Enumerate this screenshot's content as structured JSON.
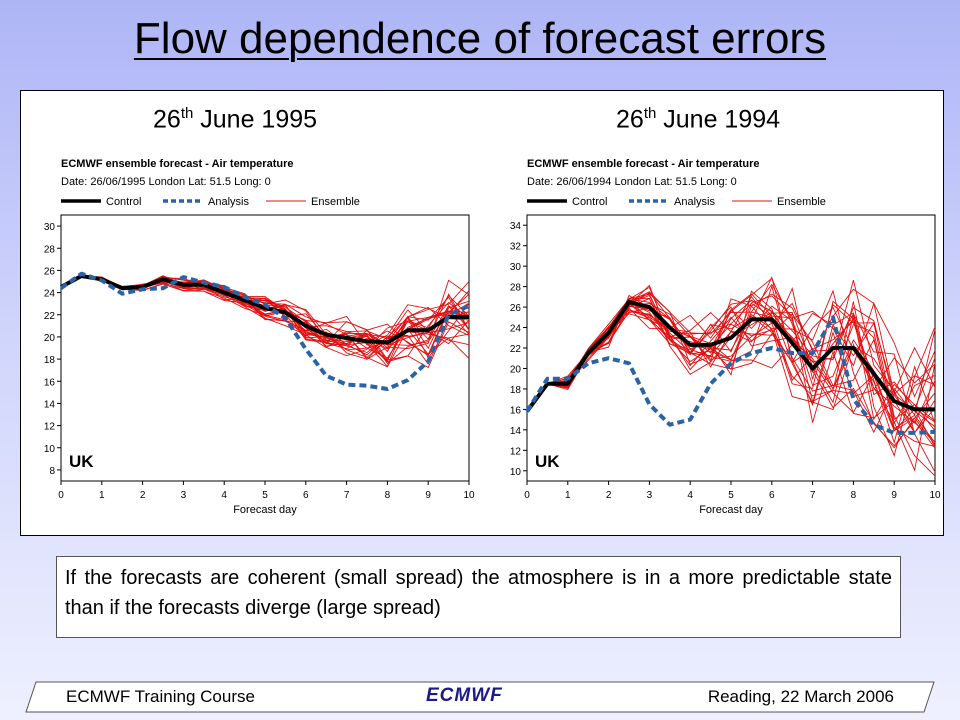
{
  "title": "Flow dependence of forecast errors",
  "panels": [
    {
      "heading_main": "26",
      "heading_sup": "th",
      "heading_rest": " June 1995"
    },
    {
      "heading_main": "26",
      "heading_sup": "th",
      "heading_rest": " June 1994"
    }
  ],
  "chart_data": [
    {
      "type": "line",
      "title": "ECMWF ensemble forecast -   Air temperature",
      "subtitle": "Date: 26/06/1995 London Lat: 51.5 Long: 0",
      "xlabel": "Forecast day",
      "region_label": "UK",
      "xlim": [
        0,
        10
      ],
      "ylim": [
        7,
        31
      ],
      "xticks": [
        0,
        1,
        2,
        3,
        4,
        5,
        6,
        7,
        8,
        9,
        10
      ],
      "yticks": [
        8,
        10,
        12,
        14,
        16,
        18,
        20,
        22,
        24,
        26,
        28,
        30
      ],
      "legend": [
        "Control",
        "Analysis",
        "Ensemble"
      ],
      "legend_position": "top",
      "colors": {
        "Control": "#000000",
        "Analysis": "#2a64a6",
        "Ensemble": "#e01010"
      },
      "series": [
        {
          "name": "Control",
          "x": [
            0,
            0.5,
            1,
            1.5,
            2,
            2.5,
            3,
            3.5,
            4,
            4.5,
            5,
            5.5,
            6,
            6.5,
            7,
            7.5,
            8,
            8.5,
            9,
            9.5,
            10
          ],
          "y": [
            24.5,
            25.5,
            25.2,
            24.4,
            24.5,
            25.2,
            24.7,
            24.7,
            24.0,
            23.3,
            22.6,
            22.2,
            21.0,
            20.2,
            19.9,
            19.6,
            19.5,
            20.6,
            20.6,
            21.8,
            21.8
          ]
        },
        {
          "name": "Analysis",
          "x": [
            0,
            0.5,
            1,
            1.5,
            2,
            2.5,
            3,
            3.5,
            4,
            4.5,
            5,
            5.5,
            6,
            6.5,
            7,
            7.5,
            8,
            8.5,
            9,
            9.5,
            10
          ],
          "y": [
            24.4,
            25.7,
            25.1,
            23.9,
            24.3,
            24.4,
            25.4,
            24.9,
            24.5,
            23.6,
            22.9,
            21.7,
            18.9,
            16.5,
            15.7,
            15.6,
            15.3,
            16.1,
            17.8,
            22.0,
            22.8
          ]
        }
      ],
      "ensemble": {
        "spread": [
          0,
          0.2,
          0.4,
          0.6,
          0.8,
          1.2,
          1.6,
          2.2,
          2.8,
          3.4,
          4.0
        ],
        "members": 26
      }
    },
    {
      "type": "line",
      "title": "ECMWF ensemble forecast -   Air temperature",
      "subtitle": "Date: 26/06/1994 London Lat: 51.5 Long: 0",
      "xlabel": "Forecast day",
      "region_label": "UK",
      "xlim": [
        0,
        10
      ],
      "ylim": [
        9,
        35
      ],
      "xticks": [
        0,
        1,
        2,
        3,
        4,
        5,
        6,
        7,
        8,
        9,
        10
      ],
      "yticks": [
        10,
        12,
        14,
        16,
        18,
        20,
        22,
        24,
        26,
        28,
        30,
        32,
        34
      ],
      "legend": [
        "Control",
        "Analysis",
        "Ensemble"
      ],
      "legend_position": "top",
      "colors": {
        "Control": "#000000",
        "Analysis": "#2a64a6",
        "Ensemble": "#e01010"
      },
      "series": [
        {
          "name": "Control",
          "x": [
            0,
            0.5,
            1,
            1.5,
            2,
            2.5,
            3,
            3.5,
            4,
            4.5,
            5,
            5.5,
            6,
            6.5,
            7,
            7.5,
            8,
            8.5,
            9,
            9.5,
            10
          ],
          "y": [
            15.8,
            18.5,
            18.5,
            21.5,
            23.5,
            26.5,
            26.0,
            24.0,
            22.3,
            22.3,
            23.0,
            24.8,
            24.8,
            22.5,
            20.0,
            22.0,
            22.0,
            19.5,
            16.8,
            16.0,
            16.0
          ]
        },
        {
          "name": "Analysis",
          "x": [
            0,
            0.5,
            1,
            1.5,
            2,
            2.5,
            3,
            3.5,
            4,
            4.5,
            5,
            5.5,
            6,
            6.5,
            7,
            7.5,
            8,
            8.5,
            9,
            9.5,
            10
          ],
          "y": [
            15.8,
            19.0,
            19.0,
            20.5,
            21.0,
            20.5,
            16.5,
            14.5,
            15.0,
            18.5,
            20.5,
            21.5,
            22.0,
            21.5,
            21.5,
            25.0,
            17.0,
            14.5,
            13.7,
            13.7,
            13.8
          ]
        }
      ],
      "ensemble": {
        "spread": [
          0,
          0.8,
          1.5,
          2.5,
          3.5,
          4.5,
          5.5,
          6.5,
          7.5,
          8.0,
          8.5
        ],
        "members": 26
      }
    }
  ],
  "note": "If the forecasts are coherent (small spread) the atmosphere is in a more predictable state than if the forecasts diverge (large spread)",
  "footer": {
    "left": "ECMWF Training Course",
    "logo": "ECMWF",
    "right": "Reading, 22 March 2006"
  }
}
